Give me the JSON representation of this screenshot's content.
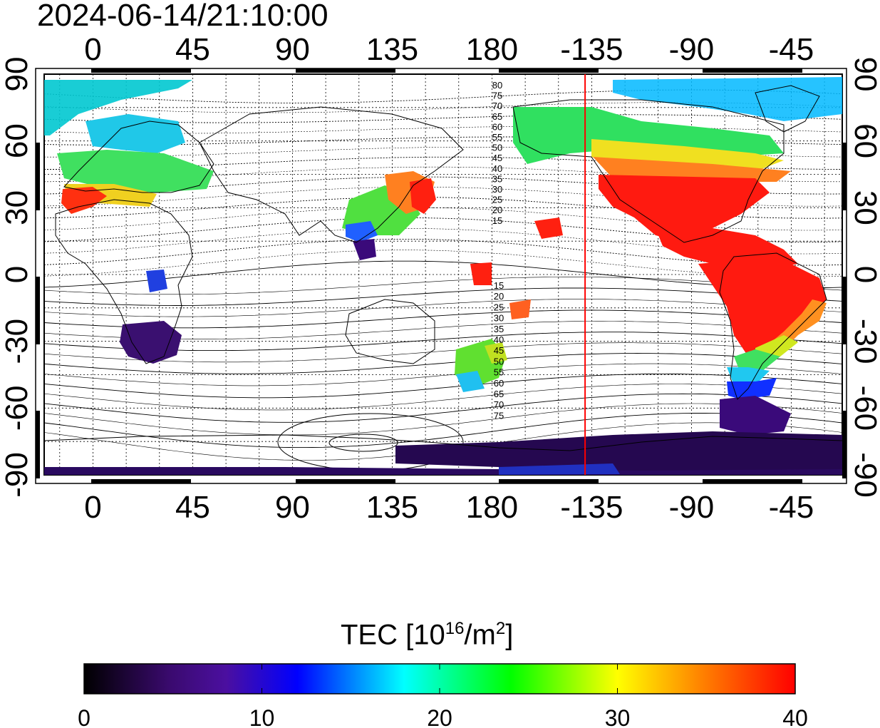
{
  "title": "2024-06-14/21:10:00",
  "map": {
    "x_top_ticks": [
      "0",
      "45",
      "90",
      "135",
      "180",
      "-135",
      "-90",
      "-45"
    ],
    "x_bottom_ticks": [
      "0",
      "45",
      "90",
      "135",
      "180",
      "-135",
      "-90",
      "-45"
    ],
    "y_left_ticks": [
      "90",
      "60",
      "30",
      "0",
      "-30",
      "-60",
      "-90"
    ],
    "y_right_ticks": [
      "90",
      "60",
      "30",
      "0",
      "-30",
      "-60",
      "-90"
    ],
    "terminator_longitude": -138,
    "terminator_color": "#ff0000",
    "contour_labels_north": [
      "80",
      "75",
      "70",
      "65",
      "60",
      "55",
      "50",
      "45",
      "40",
      "35",
      "30",
      "25",
      "20",
      "15"
    ],
    "contour_labels_south": [
      "15",
      "20",
      "25",
      "30",
      "35",
      "40",
      "45",
      "50",
      "55",
      "60",
      "65",
      "70",
      "75"
    ]
  },
  "colorbar": {
    "label_main": "TEC  [10",
    "label_exp1": "16",
    "label_mid": "/m",
    "label_exp2": "2",
    "label_end": "]",
    "min": 0,
    "max": 40,
    "ticks": [
      "0",
      "10",
      "20",
      "30",
      "40"
    ],
    "stops": [
      "#000000",
      "#3a0a6e",
      "#4b0fa0",
      "#0000ff",
      "#00ffff",
      "#00ff00",
      "#ffff00",
      "#ff8000",
      "#ff0000"
    ]
  }
}
